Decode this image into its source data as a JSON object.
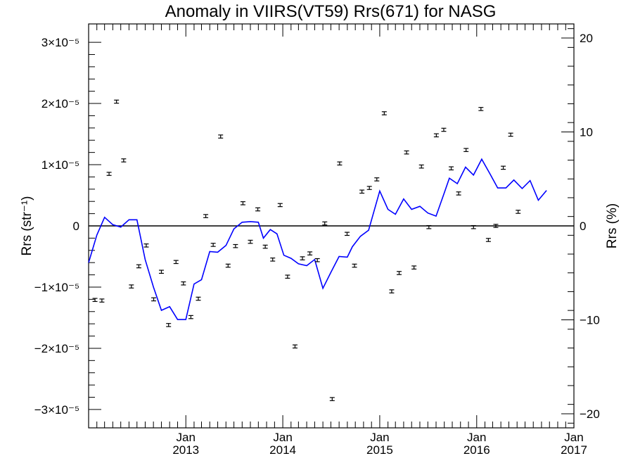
{
  "chart_data": {
    "type": "scatter",
    "title": "Anomaly in VIIRS(VT59) Rrs(671) for NASG",
    "ylabel_left": "Rrs (str⁻¹)",
    "ylabel_right": "Rrs (%)",
    "xlabel": "",
    "xlim": [
      "2012-01-01",
      "2017-01-01"
    ],
    "ylim_left": [
      -3.3e-05,
      3.3e-05
    ],
    "ylim_right": [
      -21.5,
      21.5
    ],
    "left_ticks": [
      {
        "value": -3e-05,
        "label": "−3×10⁻⁵"
      },
      {
        "value": -2e-05,
        "label": "−2×10⁻⁵"
      },
      {
        "value": -1e-05,
        "label": "−1×10⁻⁵"
      },
      {
        "value": 0,
        "label": "0"
      },
      {
        "value": 1e-05,
        "label": "1×10⁻⁵"
      },
      {
        "value": 2e-05,
        "label": "2×10⁻⁵"
      },
      {
        "value": 3e-05,
        "label": "3×10⁻⁵"
      }
    ],
    "right_ticks": [
      {
        "value": -20,
        "label": "−20"
      },
      {
        "value": -10,
        "label": "−10"
      },
      {
        "value": 0,
        "label": "0"
      },
      {
        "value": 10,
        "label": "10"
      },
      {
        "value": 20,
        "label": "20"
      }
    ],
    "x_ticks": [
      {
        "date": "2013-01-01",
        "label1": "Jan",
        "label2": "2013"
      },
      {
        "date": "2014-01-01",
        "label1": "Jan",
        "label2": "2014"
      },
      {
        "date": "2015-01-01",
        "label1": "Jan",
        "label2": "2015"
      },
      {
        "date": "2016-01-01",
        "label1": "Jan",
        "label2": "2016"
      },
      {
        "date": "2017-01-01",
        "label1": "Jan",
        "label2": "2017"
      }
    ],
    "colors": {
      "points": "#000000",
      "line": "#0000ff",
      "zero_line": "#000000"
    },
    "points": [
      {
        "x": "2012-01-25",
        "y": -1.21e-05
      },
      {
        "x": "2012-02-20",
        "y": -1.22e-05
      },
      {
        "x": "2012-03-18",
        "y": 8.5e-06
      },
      {
        "x": "2012-04-15",
        "y": 2.03e-05
      },
      {
        "x": "2012-05-12",
        "y": 1.07e-05
      },
      {
        "x": "2012-06-10",
        "y": -9.9e-06
      },
      {
        "x": "2012-07-08",
        "y": -6.6e-06
      },
      {
        "x": "2012-08-05",
        "y": -3.2e-06
      },
      {
        "x": "2012-09-02",
        "y": -1.2e-05
      },
      {
        "x": "2012-10-01",
        "y": -7.5e-06
      },
      {
        "x": "2012-10-28",
        "y": -1.62e-05
      },
      {
        "x": "2012-11-25",
        "y": -5.9e-06
      },
      {
        "x": "2012-12-23",
        "y": -9.4e-06
      },
      {
        "x": "2013-01-20",
        "y": -1.49e-05
      },
      {
        "x": "2013-02-17",
        "y": -1.19e-05
      },
      {
        "x": "2013-03-17",
        "y": 1.6e-06
      },
      {
        "x": "2013-04-14",
        "y": -3.1e-06
      },
      {
        "x": "2013-05-12",
        "y": 1.46e-05
      },
      {
        "x": "2013-06-09",
        "y": -6.5e-06
      },
      {
        "x": "2013-07-07",
        "y": -3.3e-06
      },
      {
        "x": "2013-08-04",
        "y": 3.7e-06
      },
      {
        "x": "2013-09-01",
        "y": -2.6e-06
      },
      {
        "x": "2013-09-29",
        "y": 2.7e-06
      },
      {
        "x": "2013-10-27",
        "y": -3.4e-06
      },
      {
        "x": "2013-11-24",
        "y": -5.5e-06
      },
      {
        "x": "2013-12-22",
        "y": 3.4e-06
      },
      {
        "x": "2014-01-19",
        "y": -8.3e-06
      },
      {
        "x": "2014-02-16",
        "y": -1.97e-05
      },
      {
        "x": "2014-03-16",
        "y": -5.3e-06
      },
      {
        "x": "2014-04-13",
        "y": -4.5e-06
      },
      {
        "x": "2014-05-11",
        "y": -5.6e-06
      },
      {
        "x": "2014-06-08",
        "y": 4e-07
      },
      {
        "x": "2014-07-06",
        "y": -2.83e-05
      },
      {
        "x": "2014-08-03",
        "y": 1.02e-05
      },
      {
        "x": "2014-08-31",
        "y": -1.3e-06
      },
      {
        "x": "2014-09-28",
        "y": -6.5e-06
      },
      {
        "x": "2014-10-26",
        "y": 5.6e-06
      },
      {
        "x": "2014-11-23",
        "y": 6.2e-06
      },
      {
        "x": "2014-12-21",
        "y": 7.6e-06
      },
      {
        "x": "2015-01-18",
        "y": 1.84e-05
      },
      {
        "x": "2015-02-15",
        "y": -1.07e-05
      },
      {
        "x": "2015-03-15",
        "y": -7.7e-06
      },
      {
        "x": "2015-04-12",
        "y": 1.2e-05
      },
      {
        "x": "2015-05-10",
        "y": -6.8e-06
      },
      {
        "x": "2015-06-07",
        "y": 9.7e-06
      },
      {
        "x": "2015-07-05",
        "y": -2e-07
      },
      {
        "x": "2015-08-02",
        "y": 1.48e-05
      },
      {
        "x": "2015-08-30",
        "y": 1.57e-05
      },
      {
        "x": "2015-09-27",
        "y": 9.4e-06
      },
      {
        "x": "2015-10-25",
        "y": 5.3e-06
      },
      {
        "x": "2015-11-22",
        "y": 1.24e-05
      },
      {
        "x": "2015-12-20",
        "y": -2e-07
      },
      {
        "x": "2016-01-17",
        "y": 1.91e-05
      },
      {
        "x": "2016-02-14",
        "y": -2.3e-06
      },
      {
        "x": "2016-03-13",
        "y": 0.0
      },
      {
        "x": "2016-04-10",
        "y": 9.5e-06
      },
      {
        "x": "2016-05-08",
        "y": 1.49e-05
      },
      {
        "x": "2016-06-05",
        "y": 2.3e-06
      }
    ],
    "line": [
      {
        "x": "2012-01-01",
        "y": -6e-06
      },
      {
        "x": "2012-02-01",
        "y": -1.5e-06
      },
      {
        "x": "2012-03-01",
        "y": 1.4e-06
      },
      {
        "x": "2012-04-01",
        "y": 2e-07
      },
      {
        "x": "2012-05-01",
        "y": -2e-07
      },
      {
        "x": "2012-06-01",
        "y": 1e-06
      },
      {
        "x": "2012-07-01",
        "y": 1e-06
      },
      {
        "x": "2012-08-01",
        "y": -5.5e-06
      },
      {
        "x": "2012-09-01",
        "y": -1e-05
      },
      {
        "x": "2012-10-01",
        "y": -1.38e-05
      },
      {
        "x": "2012-11-01",
        "y": -1.32e-05
      },
      {
        "x": "2012-12-01",
        "y": -1.53e-05
      },
      {
        "x": "2013-01-01",
        "y": -1.53e-05
      },
      {
        "x": "2013-02-01",
        "y": -9.5e-06
      },
      {
        "x": "2013-03-01",
        "y": -8.8e-06
      },
      {
        "x": "2013-04-01",
        "y": -4.2e-06
      },
      {
        "x": "2013-05-01",
        "y": -4.3e-06
      },
      {
        "x": "2013-06-01",
        "y": -3.2e-06
      },
      {
        "x": "2013-07-01",
        "y": -5e-07
      },
      {
        "x": "2013-08-01",
        "y": 6e-07
      },
      {
        "x": "2013-09-01",
        "y": 7e-07
      },
      {
        "x": "2013-10-01",
        "y": 6e-07
      },
      {
        "x": "2013-10-20",
        "y": -2e-06
      },
      {
        "x": "2013-11-15",
        "y": -6e-07
      },
      {
        "x": "2013-12-10",
        "y": -1.3e-06
      },
      {
        "x": "2014-01-05",
        "y": -4.8e-06
      },
      {
        "x": "2014-02-01",
        "y": -5.3e-06
      },
      {
        "x": "2014-03-01",
        "y": -6.2e-06
      },
      {
        "x": "2014-04-01",
        "y": -6.5e-06
      },
      {
        "x": "2014-05-01",
        "y": -5.5e-06
      },
      {
        "x": "2014-06-01",
        "y": -1.02e-05
      },
      {
        "x": "2014-07-01",
        "y": -7.6e-06
      },
      {
        "x": "2014-08-01",
        "y": -5e-06
      },
      {
        "x": "2014-09-01",
        "y": -5.1e-06
      },
      {
        "x": "2014-09-20",
        "y": -3.4e-06
      },
      {
        "x": "2014-10-20",
        "y": -1.7e-06
      },
      {
        "x": "2014-11-20",
        "y": -7e-07
      },
      {
        "x": "2015-01-01",
        "y": 5.7e-06
      },
      {
        "x": "2015-02-01",
        "y": 2.7e-06
      },
      {
        "x": "2015-03-01",
        "y": 1.9e-06
      },
      {
        "x": "2015-04-01",
        "y": 4.4e-06
      },
      {
        "x": "2015-05-01",
        "y": 2.7e-06
      },
      {
        "x": "2015-06-01",
        "y": 3.2e-06
      },
      {
        "x": "2015-07-01",
        "y": 2.1e-06
      },
      {
        "x": "2015-08-01",
        "y": 1.6e-06
      },
      {
        "x": "2015-09-01",
        "y": 5.4e-06
      },
      {
        "x": "2015-09-20",
        "y": 7.8e-06
      },
      {
        "x": "2015-10-20",
        "y": 6.9e-06
      },
      {
        "x": "2015-11-20",
        "y": 9.6e-06
      },
      {
        "x": "2015-12-20",
        "y": 8.3e-06
      },
      {
        "x": "2016-01-20",
        "y": 1.09e-05
      },
      {
        "x": "2016-02-20",
        "y": 8.5e-06
      },
      {
        "x": "2016-03-20",
        "y": 6.2e-06
      },
      {
        "x": "2016-04-20",
        "y": 6.2e-06
      },
      {
        "x": "2016-05-20",
        "y": 7.5e-06
      },
      {
        "x": "2016-06-20",
        "y": 6.1e-06
      },
      {
        "x": "2016-07-20",
        "y": 7.4e-06
      },
      {
        "x": "2016-08-20",
        "y": 4.2e-06
      },
      {
        "x": "2016-09-20",
        "y": 5.8e-06
      }
    ]
  }
}
